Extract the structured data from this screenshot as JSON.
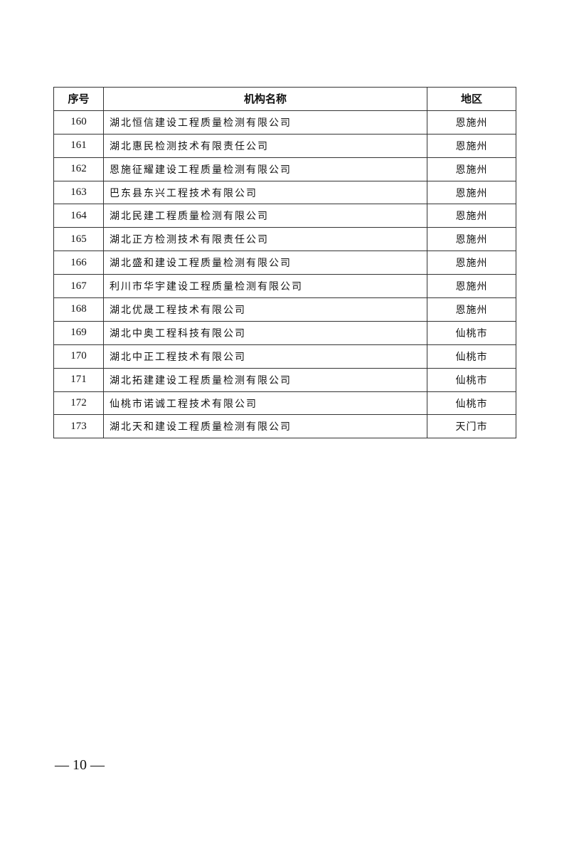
{
  "table": {
    "headers": [
      "序号",
      "机构名称",
      "地区"
    ],
    "rows": [
      {
        "no": "160",
        "name": "湖北恒信建设工程质量检测有限公司",
        "region": "恩施州"
      },
      {
        "no": "161",
        "name": "湖北惠民检测技术有限责任公司",
        "region": "恩施州"
      },
      {
        "no": "162",
        "name": "恩施征耀建设工程质量检测有限公司",
        "region": "恩施州"
      },
      {
        "no": "163",
        "name": "巴东县东兴工程技术有限公司",
        "region": "恩施州"
      },
      {
        "no": "164",
        "name": "湖北民建工程质量检测有限公司",
        "region": "恩施州"
      },
      {
        "no": "165",
        "name": "湖北正方检测技术有限责任公司",
        "region": "恩施州"
      },
      {
        "no": "166",
        "name": "湖北盛和建设工程质量检测有限公司",
        "region": "恩施州"
      },
      {
        "no": "167",
        "name": "利川市华宇建设工程质量检测有限公司",
        "region": "恩施州"
      },
      {
        "no": "168",
        "name": "湖北优晟工程技术有限公司",
        "region": "恩施州"
      },
      {
        "no": "169",
        "name": "湖北中奥工程科技有限公司",
        "region": "仙桃市"
      },
      {
        "no": "170",
        "name": "湖北中正工程技术有限公司",
        "region": "仙桃市"
      },
      {
        "no": "171",
        "name": "湖北拓建建设工程质量检测有限公司",
        "region": "仙桃市"
      },
      {
        "no": "172",
        "name": "仙桃市诺诚工程技术有限公司",
        "region": "仙桃市"
      },
      {
        "no": "173",
        "name": "湖北天和建设工程质量检测有限公司",
        "region": "天门市"
      }
    ]
  },
  "footer": {
    "page_number": "— 10 —"
  }
}
